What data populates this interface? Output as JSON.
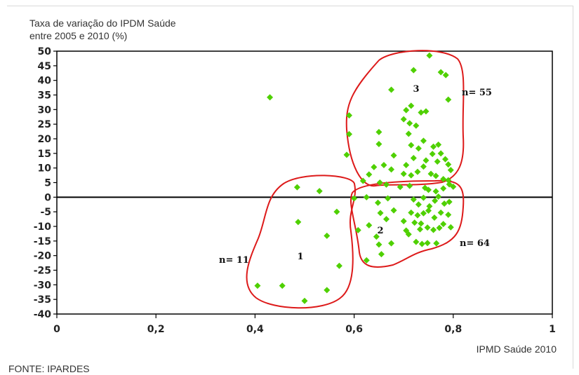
{
  "chart_title": {
    "line1": "Taxa de variação do IPDM Saúde",
    "line2": "entre 2005 e 2010 (%)"
  },
  "x_axis_title": "IPMD Saúde 2010",
  "source": "FONTE: IPARDES",
  "colors": {
    "point": "#4fd000",
    "cluster": "#dd1a1a",
    "axis": "#000000"
  },
  "chart_data": {
    "type": "scatter",
    "xlim": [
      0,
      1
    ],
    "ylim": [
      -40,
      50
    ],
    "x_ticks": [
      {
        "v": 0,
        "label": "0"
      },
      {
        "v": 0.2,
        "label": "0,2"
      },
      {
        "v": 0.4,
        "label": "0,4"
      },
      {
        "v": 0.6,
        "label": "0,6"
      },
      {
        "v": 0.8,
        "label": "0,8"
      },
      {
        "v": 1,
        "label": "1"
      }
    ],
    "y_ticks": [
      {
        "v": 50,
        "label": "50"
      },
      {
        "v": 45,
        "label": "45"
      },
      {
        "v": 40,
        "label": "40"
      },
      {
        "v": 35,
        "label": "35"
      },
      {
        "v": 30,
        "label": "30"
      },
      {
        "v": 25,
        "label": "25"
      },
      {
        "v": 20,
        "label": "20"
      },
      {
        "v": 15,
        "label": "15"
      },
      {
        "v": 10,
        "label": "10"
      },
      {
        "v": 5,
        "label": "5"
      },
      {
        "v": 0,
        "label": "0"
      },
      {
        "v": -5,
        "label": "-5"
      },
      {
        "v": -10,
        "label": "-10"
      },
      {
        "v": -15,
        "label": "-15"
      },
      {
        "v": -20,
        "label": "-20"
      },
      {
        "v": -25,
        "label": "-25"
      },
      {
        "v": -30,
        "label": "-30"
      },
      {
        "v": -35,
        "label": "-35"
      },
      {
        "v": -40,
        "label": "-40"
      }
    ],
    "grid": false,
    "points": [
      [
        0.43,
        34.2
      ],
      [
        0.485,
        3.4
      ],
      [
        0.53,
        2.1
      ],
      [
        0.487,
        -8.5
      ],
      [
        0.565,
        -5.0
      ],
      [
        0.545,
        -13.2
      ],
      [
        0.57,
        -23.5
      ],
      [
        0.405,
        -30.3
      ],
      [
        0.455,
        -30.3
      ],
      [
        0.545,
        -31.8
      ],
      [
        0.5,
        -35.5
      ],
      [
        0.752,
        48.5
      ],
      [
        0.775,
        42.8
      ],
      [
        0.785,
        41.8
      ],
      [
        0.72,
        43.5
      ],
      [
        0.675,
        36.8
      ],
      [
        0.79,
        33.4
      ],
      [
        0.59,
        28.0
      ],
      [
        0.715,
        31.3
      ],
      [
        0.705,
        29.8
      ],
      [
        0.735,
        29.0
      ],
      [
        0.745,
        29.4
      ],
      [
        0.7,
        26.7
      ],
      [
        0.712,
        25.3
      ],
      [
        0.725,
        24.5
      ],
      [
        0.65,
        22.3
      ],
      [
        0.59,
        21.6
      ],
      [
        0.71,
        21.7
      ],
      [
        0.74,
        19.3
      ],
      [
        0.65,
        18.2
      ],
      [
        0.715,
        17.8
      ],
      [
        0.73,
        16.7
      ],
      [
        0.76,
        17.3
      ],
      [
        0.77,
        18.0
      ],
      [
        0.585,
        14.5
      ],
      [
        0.68,
        14.3
      ],
      [
        0.72,
        13.4
      ],
      [
        0.745,
        12.6
      ],
      [
        0.758,
        14.8
      ],
      [
        0.768,
        12.2
      ],
      [
        0.775,
        15.0
      ],
      [
        0.784,
        13.0
      ],
      [
        0.79,
        11.2
      ],
      [
        0.795,
        9.3
      ],
      [
        0.74,
        10.5
      ],
      [
        0.705,
        11.0
      ],
      [
        0.66,
        11.0
      ],
      [
        0.64,
        10.3
      ],
      [
        0.63,
        7.8
      ],
      [
        0.618,
        5.6
      ],
      [
        0.675,
        9.5
      ],
      [
        0.7,
        8.0
      ],
      [
        0.715,
        7.5
      ],
      [
        0.728,
        8.7
      ],
      [
        0.755,
        8.0
      ],
      [
        0.765,
        7.3
      ],
      [
        0.78,
        6.2
      ],
      [
        0.79,
        5.8
      ],
      [
        0.652,
        5.0
      ],
      [
        0.665,
        4.3
      ],
      [
        0.693,
        3.5
      ],
      [
        0.712,
        3.9
      ],
      [
        0.743,
        3.2
      ],
      [
        0.75,
        2.5
      ],
      [
        0.765,
        2.0
      ],
      [
        0.78,
        3.0
      ],
      [
        0.792,
        4.4
      ],
      [
        0.8,
        3.6
      ],
      [
        0.6,
        -0.4
      ],
      [
        0.625,
        0.0
      ],
      [
        0.648,
        -1.9
      ],
      [
        0.668,
        -0.4
      ],
      [
        0.72,
        -0.8
      ],
      [
        0.73,
        -2.5
      ],
      [
        0.74,
        -0.2
      ],
      [
        0.752,
        -3.1
      ],
      [
        0.763,
        -1.2
      ],
      [
        0.77,
        0.2
      ],
      [
        0.782,
        -2.2
      ],
      [
        0.792,
        -1.6
      ],
      [
        0.653,
        -5.4
      ],
      [
        0.68,
        -4.5
      ],
      [
        0.715,
        -5.3
      ],
      [
        0.728,
        -6.2
      ],
      [
        0.74,
        -5.5
      ],
      [
        0.75,
        -4.6
      ],
      [
        0.762,
        -7.0
      ],
      [
        0.775,
        -5.3
      ],
      [
        0.79,
        -6.0
      ],
      [
        0.665,
        -7.5
      ],
      [
        0.7,
        -8.2
      ],
      [
        0.722,
        -8.7
      ],
      [
        0.735,
        -9.0
      ],
      [
        0.748,
        -10.4
      ],
      [
        0.76,
        -11.2
      ],
      [
        0.772,
        -10.5
      ],
      [
        0.78,
        -9.2
      ],
      [
        0.795,
        -10.3
      ],
      [
        0.608,
        -11.3
      ],
      [
        0.63,
        -9.6
      ],
      [
        0.705,
        -11.4
      ],
      [
        0.733,
        -11.0
      ],
      [
        0.71,
        -12.7
      ],
      [
        0.645,
        -13.5
      ],
      [
        0.725,
        -15.3
      ],
      [
        0.737,
        -16.0
      ],
      [
        0.748,
        -15.7
      ],
      [
        0.766,
        -15.8
      ],
      [
        0.65,
        -16.2
      ],
      [
        0.675,
        -15.8
      ],
      [
        0.655,
        -19.5
      ],
      [
        0.625,
        -21.6
      ]
    ],
    "clusters": [
      {
        "label": "1",
        "count_label": "n= 11"
      },
      {
        "label": "2",
        "count_label": "n= 64"
      },
      {
        "label": "3",
        "count_label": "n= 55"
      }
    ]
  }
}
